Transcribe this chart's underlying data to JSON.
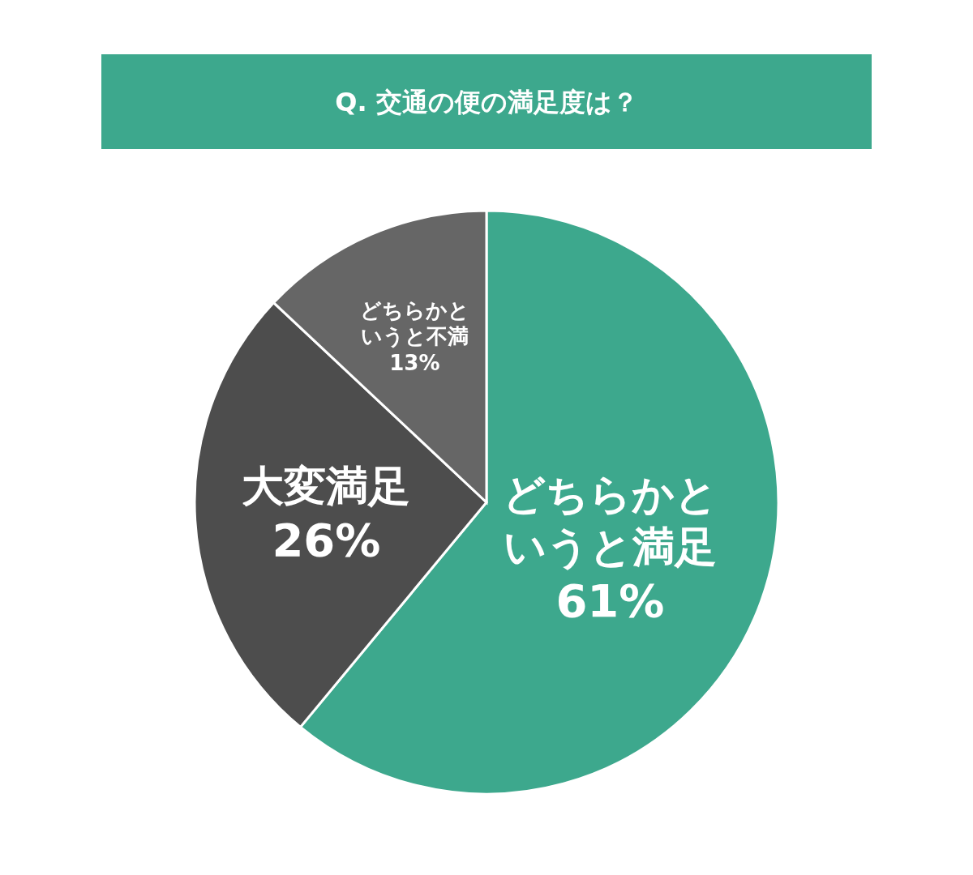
{
  "chart_data": {
    "type": "pie",
    "title": "Q. 交通の便の満足度は？",
    "categories": [
      "どちらかというと満足",
      "大変満足",
      "どちらかというと不満"
    ],
    "values": [
      61,
      26,
      13
    ],
    "colors": [
      "#3da88d",
      "#4d4d4d",
      "#666666"
    ],
    "value_labels": [
      "61%",
      "26%",
      "13%"
    ]
  }
}
